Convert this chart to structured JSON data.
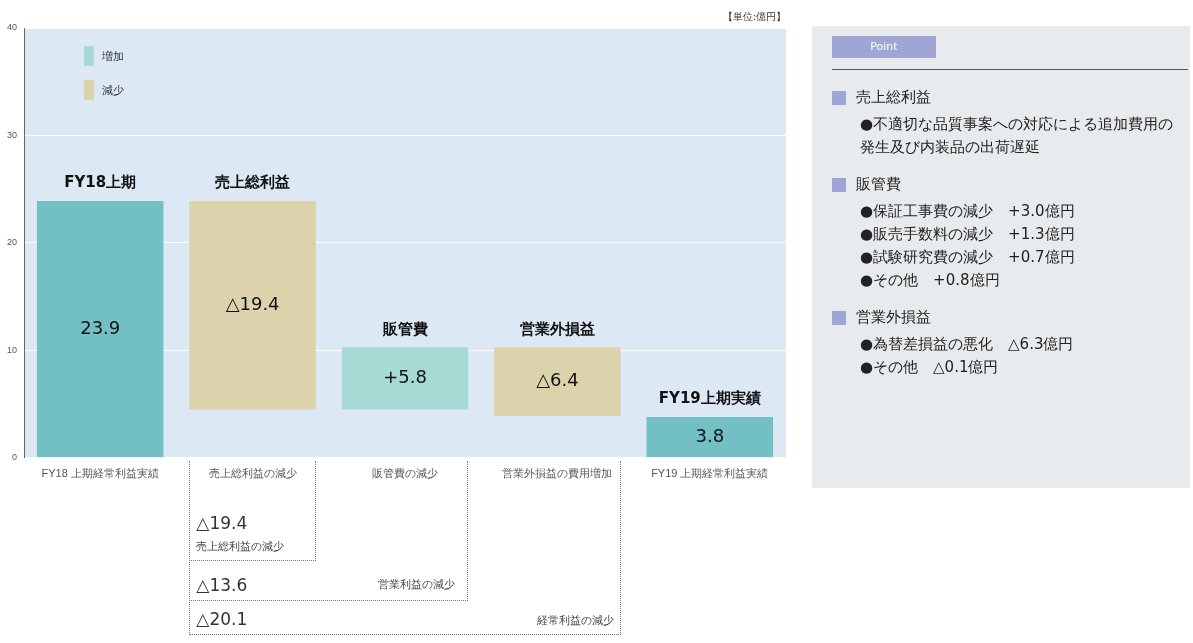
{
  "chart_data": [
    {
      "type": "bar",
      "ylabel": "【単位:億円】",
      "categories": [
        "FY18 上期経常利益実績",
        "売上総利益の減少",
        "販管費の減少",
        "営業外損益の費用増加",
        "FY19 上期経常利益実績"
      ],
      "series": [
        {
          "color": "#72c0c3",
          "base": [
            0,
            null,
            null,
            null,
            0
          ],
          "values": [
            23.9,
            null,
            null,
            null,
            3.8
          ],
          "value_labels": [
            "23.9",
            null,
            null,
            null,
            "3.8"
          ]
        },
        {
          "name": "増加",
          "color": "#a8dad5",
          "base": [
            null,
            null,
            4.5,
            null,
            null
          ],
          "values": [
            null,
            null,
            5.8,
            null,
            null
          ],
          "value_labels": [
            null,
            null,
            "+5.8",
            null,
            null
          ]
        },
        {
          "name": "減少",
          "color": "#dcd3ac",
          "base": [
            null,
            4.5,
            null,
            3.9,
            null
          ],
          "values": [
            null,
            19.4,
            null,
            6.4,
            null
          ],
          "value_labels": [
            null,
            "△19.4",
            null,
            "△6.4",
            null
          ]
        }
      ],
      "ylim": [
        0,
        40
      ],
      "yticks": [
        0,
        10,
        20,
        30,
        40
      ],
      "grid": "y",
      "legend": "top left",
      "annotations": [
        "FY18上期",
        "売上総利益",
        "販管費",
        "営業外損益",
        "FY19上期実績",
        "△19.4\n売上総利益の減少",
        "△13.6\n営業利益の減少",
        "△20.1\n経常利益の減少"
      ]
    },
    {
      "type": "other",
      "title": "Point",
      "annotations": [
        "売上総利益\n●不適切な品質事案への対応による追加費用の発生及び内装品の出荷遅延",
        "販管費\n●保証工事費の減少　+3.0億円\n●販売手数料の減少　+1.3億円\n●試験研究費の減少　+0.7億円\n●その他　+0.8億円",
        "営業外損益\n●為替差損益の悪化　△6.3億円\n●その他　△0.1億円"
      ]
    }
  ]
}
